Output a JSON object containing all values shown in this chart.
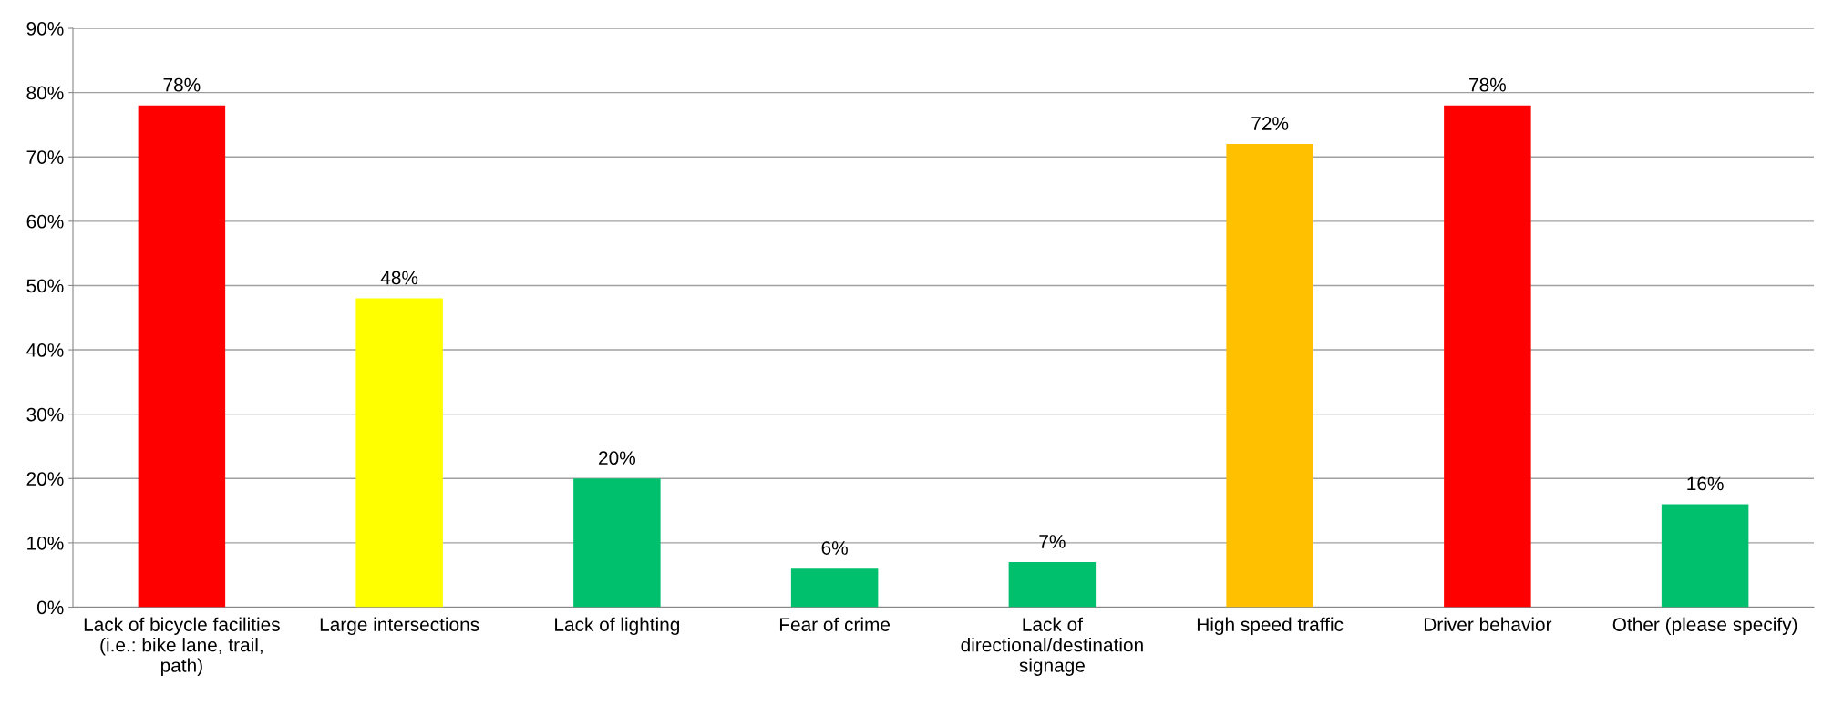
{
  "chart_data": {
    "type": "bar",
    "categories": [
      "Lack of bicycle facilities\n(i.e.: bike lane, trail,\npath)",
      "Large intersections",
      "Lack of lighting",
      "Fear of crime",
      "Lack of\ndirectional/destination\nsignage",
      "High speed traffic",
      "Driver behavior",
      "Other (please specify)"
    ],
    "values": [
      78,
      48,
      20,
      6,
      7,
      72,
      78,
      16
    ],
    "colors": [
      "#ff0000",
      "#ffff00",
      "#00c06e",
      "#00c06e",
      "#00c06e",
      "#ffc000",
      "#ff0000",
      "#00c06e"
    ],
    "value_labels": [
      "78%",
      "48%",
      "20%",
      "6%",
      "7%",
      "72%",
      "78%",
      "16%"
    ],
    "ylim": [
      0,
      90
    ],
    "yticks": [
      {
        "value": 0,
        "label": "0%"
      },
      {
        "value": 10,
        "label": "10%"
      },
      {
        "value": 20,
        "label": "20%"
      },
      {
        "value": 30,
        "label": "30%"
      },
      {
        "value": 40,
        "label": "40%"
      },
      {
        "value": 50,
        "label": "50%"
      },
      {
        "value": 60,
        "label": "60%"
      },
      {
        "value": 70,
        "label": "70%"
      },
      {
        "value": 80,
        "label": "80%"
      },
      {
        "value": 90,
        "label": "90%"
      }
    ],
    "grid": "y"
  }
}
